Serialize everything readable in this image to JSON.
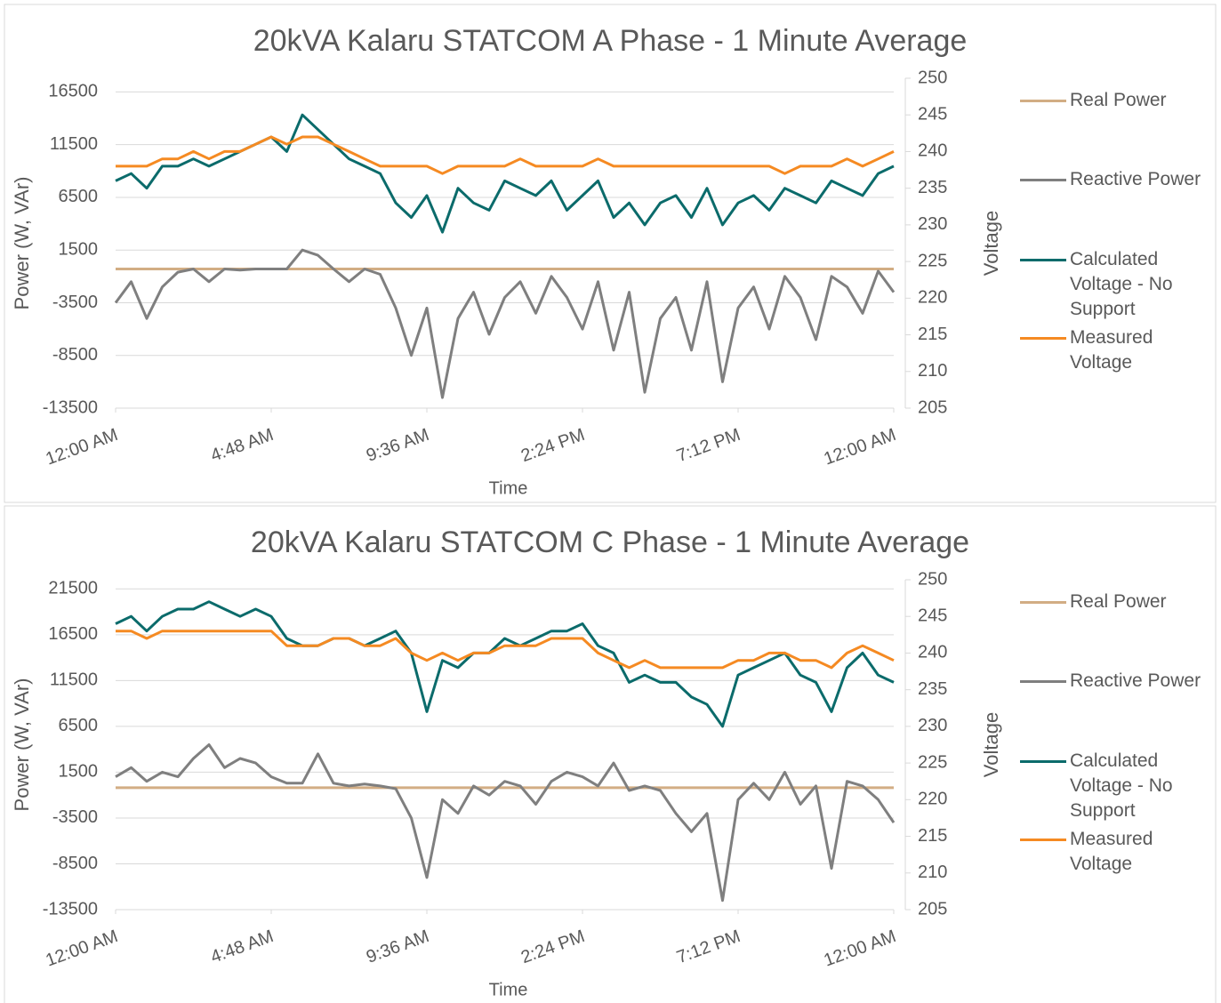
{
  "chart_data": [
    {
      "type": "line",
      "title": "20kVA Kalaru STATCOM A Phase - 1 Minute Average",
      "x_label": "Time",
      "y_label": "Power (W, VAr)",
      "y2_label": "Voltage",
      "grid": true,
      "legend": "right",
      "x": [
        0,
        0.02,
        0.04,
        0.06,
        0.08,
        0.1,
        0.12,
        0.14,
        0.16,
        0.18,
        0.2,
        0.22,
        0.24,
        0.26,
        0.28,
        0.3,
        0.32,
        0.34,
        0.36,
        0.38,
        0.4,
        0.42,
        0.44,
        0.46,
        0.48,
        0.5,
        0.52,
        0.54,
        0.56,
        0.58,
        0.6,
        0.62,
        0.64,
        0.66,
        0.68,
        0.7,
        0.72,
        0.74,
        0.76,
        0.78,
        0.8,
        0.82,
        0.84,
        0.86,
        0.88,
        0.9,
        0.92,
        0.94,
        0.96,
        0.98,
        1
      ],
      "xlim": [
        0,
        1
      ],
      "xticks": [
        {
          "value": 0,
          "label": "12:00 AM"
        },
        {
          "value": 0.2,
          "label": "4:48 AM"
        },
        {
          "value": 0.4,
          "label": "9:36 AM"
        },
        {
          "value": 0.6,
          "label": "2:24 PM"
        },
        {
          "value": 0.8,
          "label": "7:12 PM"
        },
        {
          "value": 1,
          "label": "12:00 AM"
        }
      ],
      "ylim": [
        -13500,
        17800
      ],
      "yticks": [
        -13500,
        -8500,
        -3500,
        1500,
        6500,
        11500,
        16500
      ],
      "y2lim": [
        205,
        250
      ],
      "y2ticks": [
        205,
        210,
        215,
        220,
        225,
        230,
        235,
        240,
        245,
        250
      ],
      "series": [
        {
          "name": "Real Power",
          "color": "#d2ad84",
          "values": [
            -300,
            -300,
            -300,
            -300,
            -300,
            -300,
            -300,
            -300,
            -300,
            -300,
            -300,
            -300,
            -300,
            -300,
            -300,
            -300,
            -300,
            -300,
            -300,
            -300,
            -300,
            -300,
            -300,
            -300,
            -300,
            -300,
            -300,
            -300,
            -300,
            -300,
            -300,
            -300,
            -300,
            -300,
            -300,
            -300,
            -300,
            -300,
            -300,
            -300,
            -300,
            -300,
            -300,
            -300,
            -300,
            -300,
            -300,
            -300,
            -300,
            -300,
            -300
          ]
        },
        {
          "name": "Reactive Power",
          "color": "#7f7f7f",
          "values": [
            -3500,
            -1500,
            -5000,
            -2000,
            -600,
            -300,
            -1500,
            -300,
            -400,
            -300,
            -300,
            -300,
            1500,
            1000,
            -300,
            -1500,
            -300,
            -800,
            -4000,
            -8500,
            -4000,
            -12500,
            -5000,
            -2500,
            -6500,
            -3000,
            -1500,
            -4500,
            -1000,
            -3000,
            -6000,
            -1500,
            -8000,
            -2500,
            -12000,
            -5000,
            -3000,
            -8000,
            -1500,
            -11000,
            -4000,
            -2000,
            -6000,
            -1000,
            -3000,
            -7000,
            -1000,
            -2000,
            -4500,
            -500,
            -2500
          ]
        },
        {
          "name": "Calculated Voltage - No Support",
          "color": "#0b6b6b",
          "axis": "y2",
          "values": [
            236,
            237,
            235,
            238,
            238,
            239,
            238,
            239,
            240,
            241,
            242,
            240,
            245,
            243,
            241,
            239,
            238,
            237,
            233,
            231,
            234,
            229,
            235,
            233,
            232,
            236,
            235,
            234,
            236,
            232,
            234,
            236,
            231,
            233,
            230,
            233,
            234,
            231,
            235,
            230,
            233,
            234,
            232,
            235,
            234,
            233,
            236,
            235,
            234,
            237,
            238
          ]
        },
        {
          "name": "Measured Voltage",
          "color": "#f58a22",
          "axis": "y2",
          "values": [
            238,
            238,
            238,
            239,
            239,
            240,
            239,
            240,
            240,
            241,
            242,
            241,
            242,
            242,
            241,
            240,
            239,
            238,
            238,
            238,
            238,
            237,
            238,
            238,
            238,
            238,
            239,
            238,
            238,
            238,
            238,
            239,
            238,
            238,
            238,
            238,
            238,
            238,
            238,
            238,
            238,
            238,
            238,
            237,
            238,
            238,
            238,
            239,
            238,
            239,
            240
          ]
        }
      ]
    },
    {
      "type": "line",
      "title": "20kVA Kalaru STATCOM C Phase - 1 Minute Average",
      "x_label": "Time",
      "y_label": "Power (W, VAr)",
      "y2_label": "Voltage",
      "grid": true,
      "legend": "right",
      "x": [
        0,
        0.02,
        0.04,
        0.06,
        0.08,
        0.1,
        0.12,
        0.14,
        0.16,
        0.18,
        0.2,
        0.22,
        0.24,
        0.26,
        0.28,
        0.3,
        0.32,
        0.34,
        0.36,
        0.38,
        0.4,
        0.42,
        0.44,
        0.46,
        0.48,
        0.5,
        0.52,
        0.54,
        0.56,
        0.58,
        0.6,
        0.62,
        0.64,
        0.66,
        0.68,
        0.7,
        0.72,
        0.74,
        0.76,
        0.78,
        0.8,
        0.82,
        0.84,
        0.86,
        0.88,
        0.9,
        0.92,
        0.94,
        0.96,
        0.98,
        1
      ],
      "xlim": [
        0,
        1
      ],
      "xticks": [
        {
          "value": 0,
          "label": "12:00 AM"
        },
        {
          "value": 0.2,
          "label": "4:48 AM"
        },
        {
          "value": 0.4,
          "label": "9:36 AM"
        },
        {
          "value": 0.6,
          "label": "2:24 PM"
        },
        {
          "value": 0.8,
          "label": "7:12 PM"
        },
        {
          "value": 1,
          "label": "12:00 AM"
        }
      ],
      "ylim": [
        -13500,
        22500
      ],
      "yticks": [
        -13500,
        -8500,
        -3500,
        1500,
        6500,
        11500,
        16500,
        21500
      ],
      "y2lim": [
        205,
        250
      ],
      "y2ticks": [
        205,
        210,
        215,
        220,
        225,
        230,
        235,
        240,
        245,
        250
      ],
      "series": [
        {
          "name": "Real Power",
          "color": "#d2ad84",
          "values": [
            -200,
            -200,
            -200,
            -200,
            -200,
            -200,
            -200,
            -200,
            -200,
            -200,
            -200,
            -200,
            -200,
            -200,
            -200,
            -200,
            -200,
            -200,
            -200,
            -200,
            -200,
            -200,
            -200,
            -200,
            -200,
            -200,
            -200,
            -200,
            -200,
            -200,
            -200,
            -200,
            -200,
            -200,
            -200,
            -200,
            -200,
            -200,
            -200,
            -200,
            -200,
            -200,
            -200,
            -200,
            -200,
            -200,
            -200,
            -200,
            -200,
            -200,
            -200
          ]
        },
        {
          "name": "Reactive Power",
          "color": "#7f7f7f",
          "values": [
            1000,
            2000,
            500,
            1500,
            1000,
            3000,
            4500,
            2000,
            3000,
            2500,
            1000,
            300,
            300,
            3500,
            300,
            0,
            200,
            0,
            -300,
            -3500,
            -10000,
            -1500,
            -3000,
            0,
            -1000,
            500,
            0,
            -2000,
            500,
            1500,
            1000,
            0,
            2500,
            -500,
            0,
            -500,
            -3000,
            -5000,
            -3000,
            -12500,
            -1500,
            300,
            -1500,
            1500,
            -2000,
            0,
            -9000,
            500,
            0,
            -1500,
            -4000
          ]
        },
        {
          "name": "Calculated Voltage - No Support",
          "color": "#0b6b6b",
          "axis": "y2",
          "values": [
            244,
            245,
            243,
            245,
            246,
            246,
            247,
            246,
            245,
            246,
            245,
            242,
            241,
            241,
            242,
            242,
            241,
            242,
            243,
            240,
            232,
            239,
            238,
            240,
            240,
            242,
            241,
            242,
            243,
            243,
            244,
            241,
            240,
            236,
            237,
            236,
            236,
            234,
            233,
            230,
            237,
            238,
            239,
            240,
            237,
            236,
            232,
            238,
            240,
            237,
            236
          ]
        },
        {
          "name": "Measured Voltage",
          "color": "#f58a22",
          "axis": "y2",
          "values": [
            243,
            243,
            242,
            243,
            243,
            243,
            243,
            243,
            243,
            243,
            243,
            241,
            241,
            241,
            242,
            242,
            241,
            241,
            242,
            240,
            239,
            240,
            239,
            240,
            240,
            241,
            241,
            241,
            242,
            242,
            242,
            240,
            239,
            238,
            239,
            238,
            238,
            238,
            238,
            238,
            239,
            239,
            240,
            240,
            239,
            239,
            238,
            240,
            241,
            240,
            239
          ]
        }
      ]
    }
  ]
}
